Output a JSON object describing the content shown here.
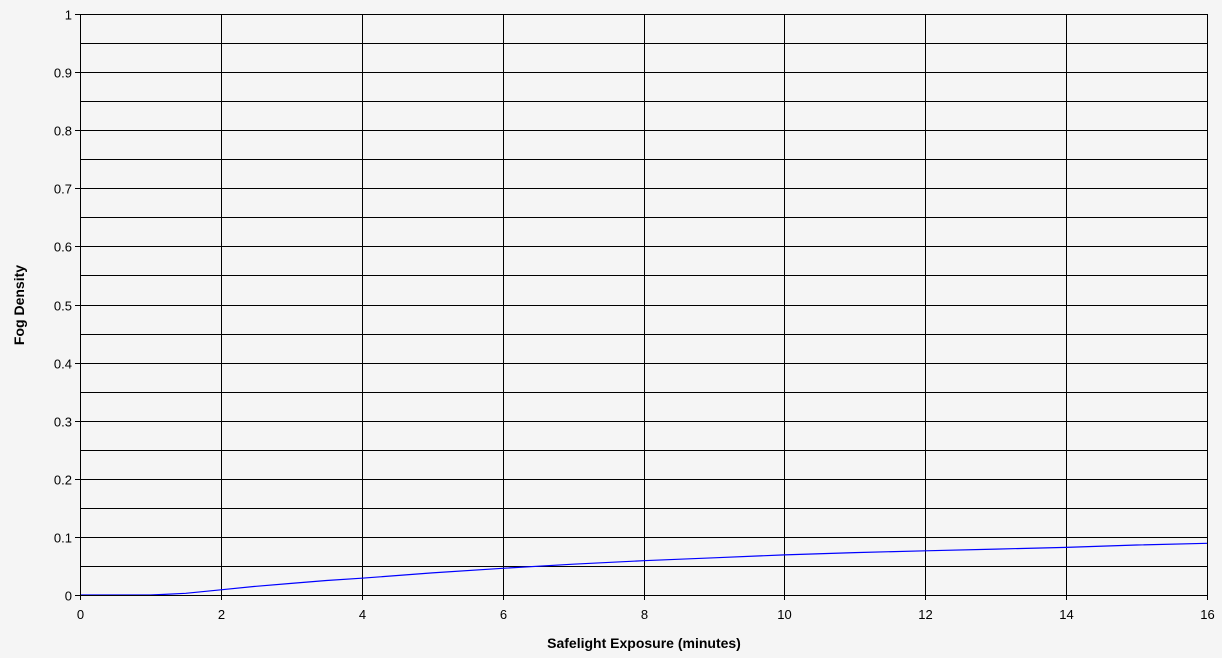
{
  "chart_data": {
    "type": "line",
    "title": "",
    "xlabel": "Safelight Exposure (minutes)",
    "ylabel": "Fog Density",
    "xlim": [
      0,
      16
    ],
    "ylim": [
      0,
      1
    ],
    "x_ticks": [
      0,
      2,
      4,
      6,
      8,
      10,
      12,
      14,
      16
    ],
    "x_tick_labels": [
      "0",
      "2",
      "4",
      "6",
      "8",
      "10",
      "12",
      "14",
      "16"
    ],
    "y_ticks": [
      0,
      0.1,
      0.2,
      0.3,
      0.4,
      0.5,
      0.6,
      0.7,
      0.8,
      0.9,
      1
    ],
    "y_tick_labels": [
      "0",
      "0.1",
      "0.2",
      "0.3",
      "0.4",
      "0.5",
      "0.6",
      "0.7",
      "0.8",
      "0.9",
      "1"
    ],
    "y_minor_gridlines": [
      0.05,
      0.15,
      0.25,
      0.35,
      0.45,
      0.55,
      0.65,
      0.75,
      0.85,
      0.95
    ],
    "grid": true,
    "legend": "none",
    "series": [
      {
        "color": "#0000ff",
        "x": [
          0,
          1,
          1.2,
          1.5,
          2,
          2.5,
          3,
          3.5,
          4,
          5,
          6,
          7,
          8,
          9,
          10,
          11,
          12,
          13,
          14,
          15,
          16
        ],
        "y": [
          0,
          0,
          0.001,
          0.003,
          0.009,
          0.015,
          0.02,
          0.025,
          0.029,
          0.038,
          0.046,
          0.053,
          0.059,
          0.064,
          0.069,
          0.073,
          0.076,
          0.079,
          0.082,
          0.086,
          0.089
        ]
      }
    ]
  },
  "colors": {
    "background": "#f5f5f5",
    "gridline": "#000000",
    "series": "#0000ff"
  }
}
